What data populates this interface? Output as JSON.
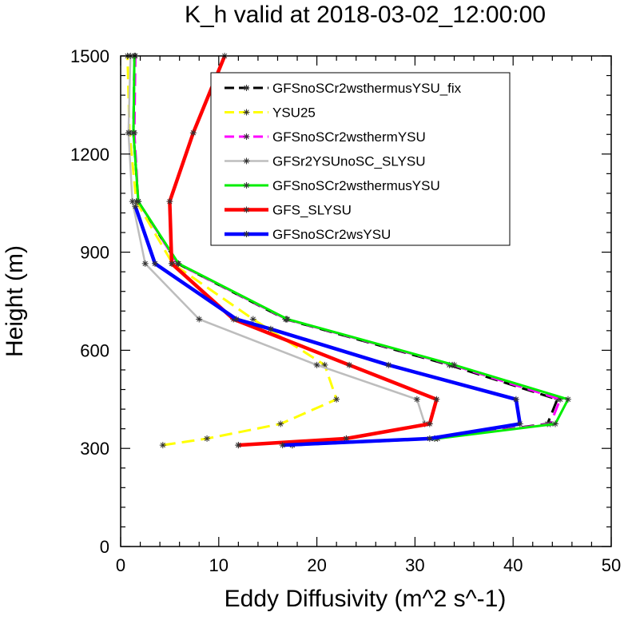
{
  "chart_data": {
    "type": "line",
    "title": "K_h valid at 2018-03-02_12:00:00",
    "xlabel": "Eddy Diffusivity (m^2 s^-1)",
    "ylabel": "Height (m)",
    "xlim": [
      0,
      50
    ],
    "ylim": [
      0,
      1500
    ],
    "xticks": [
      0,
      10,
      20,
      30,
      40,
      50
    ],
    "yticks": [
      0,
      300,
      600,
      900,
      1200,
      1500
    ],
    "legend_position": "top-right",
    "grid": false,
    "series": [
      {
        "name": "GFSnoSCr2wsthermusYSU_fix",
        "color": "#000000",
        "dash": "dashed",
        "points": [
          [
            17.5,
            310
          ],
          [
            32.0,
            330
          ],
          [
            43.5,
            375
          ],
          [
            44.5,
            450
          ],
          [
            33.5,
            555
          ],
          [
            16.8,
            695
          ],
          [
            5.8,
            865
          ],
          [
            1.8,
            1055
          ],
          [
            1.3,
            1265
          ],
          [
            1.4,
            1500
          ]
        ]
      },
      {
        "name": "YSU25",
        "color": "#ffff00",
        "dash": "dashed",
        "points": [
          [
            4.3,
            310
          ],
          [
            8.8,
            330
          ],
          [
            16.3,
            375
          ],
          [
            22.0,
            450
          ],
          [
            20.8,
            555
          ],
          [
            13.5,
            695
          ],
          [
            5.3,
            865
          ],
          [
            1.6,
            1055
          ],
          [
            0.9,
            1265
          ],
          [
            0.7,
            1500
          ]
        ]
      },
      {
        "name": "GFSnoSCr2wsthermYSU",
        "color": "#ff00ff",
        "dash": "dashed",
        "points": [
          [
            17.5,
            310
          ],
          [
            32.0,
            330
          ],
          [
            43.8,
            375
          ],
          [
            44.8,
            450
          ],
          [
            33.8,
            555
          ],
          [
            16.9,
            695
          ],
          [
            5.8,
            865
          ],
          [
            1.8,
            1055
          ],
          [
            1.4,
            1265
          ],
          [
            1.5,
            1500
          ]
        ]
      },
      {
        "name": "GFSr2YSUnoSC_SLYSU",
        "color": "#bdbdbd",
        "dash": "solid",
        "points": [
          [
            12.0,
            310
          ],
          [
            23.0,
            330
          ],
          [
            31.0,
            375
          ],
          [
            30.2,
            450
          ],
          [
            20.0,
            555
          ],
          [
            8.0,
            695
          ],
          [
            2.5,
            865
          ],
          [
            1.2,
            1055
          ],
          [
            0.8,
            1265
          ],
          [
            1.0,
            1500
          ]
        ]
      },
      {
        "name": "GFSnoSCr2wsthermusYSU",
        "color": "#00ee00",
        "dash": "solid",
        "points": [
          [
            17.5,
            310
          ],
          [
            32.3,
            330
          ],
          [
            44.3,
            375
          ],
          [
            45.6,
            450
          ],
          [
            34.0,
            555
          ],
          [
            17.0,
            695
          ],
          [
            5.9,
            865
          ],
          [
            1.8,
            1055
          ],
          [
            1.3,
            1265
          ],
          [
            1.4,
            1500
          ]
        ]
      },
      {
        "name": "GFS_SLYSU",
        "color": "#ff0000",
        "dash": "solid",
        "points": [
          [
            12.0,
            310
          ],
          [
            23.0,
            330
          ],
          [
            31.5,
            375
          ],
          [
            32.2,
            450
          ],
          [
            23.3,
            555
          ],
          [
            11.5,
            695
          ],
          [
            5.2,
            865
          ],
          [
            5.0,
            1055
          ],
          [
            7.4,
            1265
          ],
          [
            10.6,
            1500
          ]
        ]
      },
      {
        "name": "GFSnoSCr2wsYSU",
        "color": "#0000ff",
        "dash": "solid",
        "points": [
          [
            16.5,
            310
          ],
          [
            31.5,
            330
          ],
          [
            40.7,
            375
          ],
          [
            40.3,
            450
          ],
          [
            27.3,
            555
          ],
          [
            15.3,
            665
          ],
          [
            11.8,
            695
          ],
          [
            3.5,
            865
          ],
          [
            1.5,
            1040
          ]
        ]
      }
    ]
  }
}
